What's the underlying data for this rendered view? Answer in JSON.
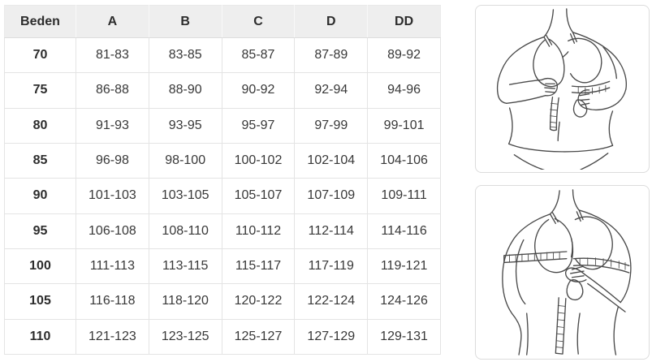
{
  "size_chart": {
    "columns": [
      "Beden",
      "A",
      "B",
      "C",
      "D",
      "DD"
    ],
    "rows": [
      {
        "size": "70",
        "values": [
          "81-83",
          "83-85",
          "85-87",
          "87-89",
          "89-92"
        ]
      },
      {
        "size": "75",
        "values": [
          "86-88",
          "88-90",
          "90-92",
          "92-94",
          "94-96"
        ]
      },
      {
        "size": "80",
        "values": [
          "91-93",
          "93-95",
          "95-97",
          "97-99",
          "99-101"
        ]
      },
      {
        "size": "85",
        "values": [
          "96-98",
          "98-100",
          "100-102",
          "102-104",
          "104-106"
        ]
      },
      {
        "size": "90",
        "values": [
          "101-103",
          "103-105",
          "105-107",
          "107-109",
          "109-111"
        ]
      },
      {
        "size": "95",
        "values": [
          "106-108",
          "108-110",
          "110-112",
          "112-114",
          "114-116"
        ]
      },
      {
        "size": "100",
        "values": [
          "111-113",
          "113-115",
          "115-117",
          "117-119",
          "119-121"
        ]
      },
      {
        "size": "105",
        "values": [
          "116-118",
          "118-120",
          "120-122",
          "122-124",
          "124-126"
        ]
      },
      {
        "size": "110",
        "values": [
          "121-123",
          "123-125",
          "125-127",
          "127-129",
          "129-131"
        ]
      }
    ]
  },
  "illustrations": {
    "first_icon": "underbust-measurement-illustration",
    "second_icon": "bust-measurement-illustration"
  },
  "colors": {
    "header_bg": "#eeeeee",
    "cell_border": "#e4e4e4",
    "text": "#383838",
    "illustration_border": "#dcdcdc",
    "line_art": "#4a4a4a"
  }
}
